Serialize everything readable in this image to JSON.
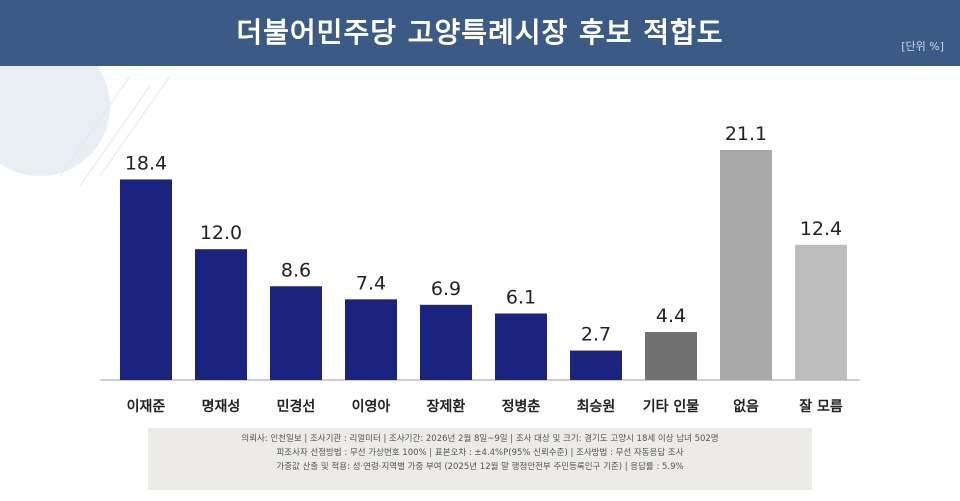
{
  "header": {
    "title": "더불어민주당 고양특례시장 후보 적합도",
    "unit": "[단위 %]"
  },
  "chart_data": {
    "type": "bar",
    "title": "더불어민주당 고양특례시장 후보 적합도",
    "unit": "%",
    "categories": [
      "이재준",
      "명재성",
      "민경선",
      "이영아",
      "장제환",
      "정병춘",
      "최승원",
      "기타 인물",
      "없음",
      "잘 모름"
    ],
    "values": [
      18.4,
      12.0,
      8.6,
      7.4,
      6.9,
      6.1,
      2.7,
      4.4,
      21.1,
      12.4
    ],
    "value_labels": [
      "18.4",
      "12.0",
      "8.6",
      "7.4",
      "6.9",
      "6.1",
      "2.7",
      "4.4",
      "21.1",
      "12.4"
    ],
    "colors": [
      "#1a237e",
      "#1a237e",
      "#1a237e",
      "#1a237e",
      "#1a237e",
      "#1a237e",
      "#1a237e",
      "#707070",
      "#a8a8a8",
      "#bdbdbd"
    ],
    "ylim": [
      0,
      21.1
    ],
    "xlabel": "",
    "ylabel": "",
    "grid": false
  },
  "footnote": {
    "line1": "의뢰사: 인천일보 | 조사기관 : 리얼미터 | 조사기간: 2026년 2월 8일~9일 | 조사 대상 및 크기: 경기도 고양시 18세 이상 남녀 502명",
    "line2": "피조사자 선정방법 : 무선 가상번호 100% | 표본오차 : ±4.4%P(95% 신뢰수준) | 조사방법 : 무선 자동응답 조사",
    "line3": "가중값 산출 및 적용: 성·연령·지역별 가중 부여 (2025년 12월 말 행정안전부 주민등록인구 기준) | 응답률 : 5.9%"
  }
}
